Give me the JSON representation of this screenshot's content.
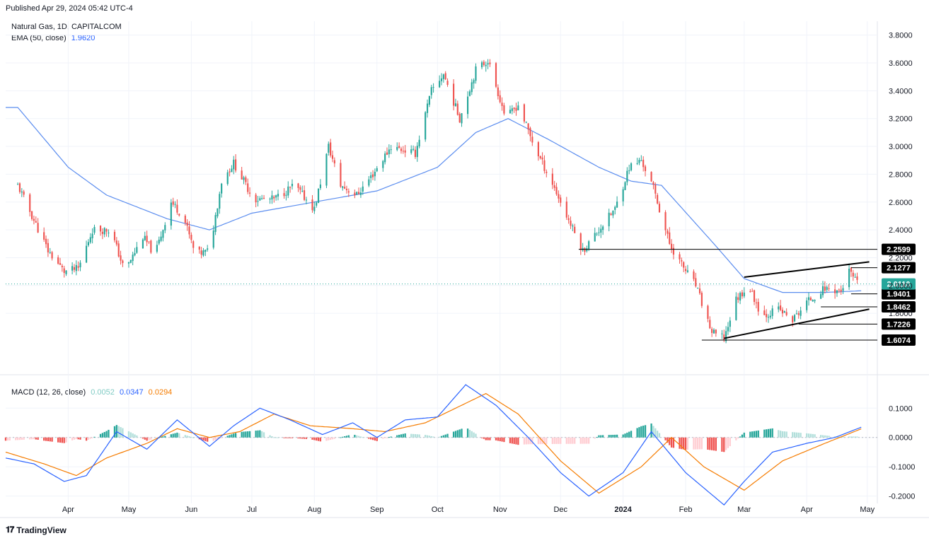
{
  "published": "Published Apr 29, 2024 05:42 UTC-4",
  "brand": "TradingView",
  "colors": {
    "up": "#26a69a",
    "down": "#ef5350",
    "ema": "#5b8def",
    "macd": "#2962ff",
    "signal": "#f57c00",
    "hist_pos_strong": "#26a69a",
    "hist_pos_weak": "#b2dfdb",
    "hist_neg_strong": "#ef5350",
    "hist_neg_weak": "#ffcdd2",
    "price_tag": "#000000",
    "last_tag": "#26a69a"
  },
  "main_legend": {
    "symbol": "Natural Gas, 1D, CAPITALCOM",
    "ema_label": "EMA (50, close)",
    "ema_value": "1.9620"
  },
  "macd_legend": {
    "label": "MACD (12, 26, close)",
    "hist": "0.0052",
    "macd": "0.0347",
    "signal": "0.0294"
  },
  "chart_data": [
    {
      "type": "candlestick",
      "title": "Natural Gas, 1D, CAPITALCOM",
      "ylim": [
        1.45,
        3.9
      ],
      "y_ticks": [
        "3.8000",
        "3.6000",
        "3.4000",
        "3.2000",
        "3.0000",
        "2.8000",
        "2.6000",
        "2.4000",
        "2.2000",
        "2.0000",
        "1.8000"
      ],
      "x_ticks": [
        "Apr",
        "May",
        "Jun",
        "Jul",
        "Aug",
        "Sep",
        "Oct",
        "Nov",
        "Dec",
        "2024",
        "Feb",
        "Mar",
        "Apr",
        "May"
      ],
      "x_tick_dates": [
        "2023-04-01",
        "2023-05-01",
        "2023-06-01",
        "2023-07-01",
        "2023-08-01",
        "2023-09-01",
        "2023-10-01",
        "2023-11-01",
        "2023-12-01",
        "2024-01-01",
        "2024-02-01",
        "2024-03-01",
        "2024-04-01",
        "2024-05-01"
      ],
      "series": [
        {
          "name": "Natural Gas",
          "anchors": [
            [
              "2023-03-07",
              2.72
            ],
            [
              "2023-03-22",
              2.25
            ],
            [
              "2023-03-30",
              2.1
            ],
            [
              "2023-04-06",
              2.12
            ],
            [
              "2023-04-13",
              2.4
            ],
            [
              "2023-04-22",
              2.4
            ],
            [
              "2023-04-29",
              2.1
            ],
            [
              "2023-05-08",
              2.35
            ],
            [
              "2023-05-14",
              2.22
            ],
            [
              "2023-05-22",
              2.6
            ],
            [
              "2023-05-28",
              2.5
            ],
            [
              "2023-06-03",
              2.22
            ],
            [
              "2023-06-10",
              2.25
            ],
            [
              "2023-06-16",
              2.75
            ],
            [
              "2023-06-22",
              2.88
            ],
            [
              "2023-07-02",
              2.62
            ],
            [
              "2023-07-12",
              2.62
            ],
            [
              "2023-07-22",
              2.72
            ],
            [
              "2023-08-01",
              2.55
            ],
            [
              "2023-08-08",
              3.0
            ],
            [
              "2023-08-14",
              2.72
            ],
            [
              "2023-08-22",
              2.65
            ],
            [
              "2023-08-30",
              2.8
            ],
            [
              "2023-09-08",
              3.0
            ],
            [
              "2023-09-20",
              2.95
            ],
            [
              "2023-09-28",
              3.4
            ],
            [
              "2023-10-04",
              3.52
            ],
            [
              "2023-10-12",
              3.2
            ],
            [
              "2023-10-20",
              3.55
            ],
            [
              "2023-10-26",
              3.62
            ],
            [
              "2023-11-04",
              3.2
            ],
            [
              "2023-11-10",
              3.3
            ],
            [
              "2023-11-18",
              3.0
            ],
            [
              "2023-11-28",
              2.7
            ],
            [
              "2023-12-04",
              2.5
            ],
            [
              "2023-12-12",
              2.25
            ],
            [
              "2023-12-20",
              2.4
            ],
            [
              "2023-12-28",
              2.55
            ],
            [
              "2024-01-04",
              2.85
            ],
            [
              "2024-01-10",
              2.9
            ],
            [
              "2024-01-16",
              2.7
            ],
            [
              "2024-01-24",
              2.3
            ],
            [
              "2024-01-30",
              2.15
            ],
            [
              "2024-02-06",
              2.0
            ],
            [
              "2024-02-14",
              1.66
            ],
            [
              "2024-02-20",
              1.62
            ],
            [
              "2024-02-26",
              1.9
            ],
            [
              "2024-03-03",
              2.0
            ],
            [
              "2024-03-10",
              1.78
            ],
            [
              "2024-03-18",
              1.83
            ],
            [
              "2024-03-25",
              1.75
            ],
            [
              "2024-04-01",
              1.88
            ],
            [
              "2024-04-10",
              1.98
            ],
            [
              "2024-04-18",
              1.96
            ],
            [
              "2024-04-22",
              2.1
            ],
            [
              "2024-04-26",
              2.011
            ]
          ]
        }
      ],
      "ema50_anchors": [
        [
          "2023-03-07",
          3.28
        ],
        [
          "2023-04-01",
          2.85
        ],
        [
          "2023-04-20",
          2.65
        ],
        [
          "2023-05-20",
          2.48
        ],
        [
          "2023-06-10",
          2.4
        ],
        [
          "2023-07-01",
          2.52
        ],
        [
          "2023-08-01",
          2.6
        ],
        [
          "2023-09-01",
          2.68
        ],
        [
          "2023-10-01",
          2.85
        ],
        [
          "2023-10-20",
          3.1
        ],
        [
          "2023-11-05",
          3.2
        ],
        [
          "2023-11-25",
          3.05
        ],
        [
          "2023-12-20",
          2.85
        ],
        [
          "2024-01-05",
          2.75
        ],
        [
          "2024-01-20",
          2.72
        ],
        [
          "2024-02-15",
          2.3
        ],
        [
          "2024-03-01",
          2.05
        ],
        [
          "2024-03-20",
          1.95
        ],
        [
          "2024-04-10",
          1.95
        ],
        [
          "2024-04-28",
          1.962
        ]
      ],
      "last_price": "2.0110",
      "levels": [
        {
          "value": 2.2599,
          "label": "2.2599",
          "from": "2023-12-10"
        },
        {
          "value": 2.1277,
          "label": "2.1277",
          "from": "2024-04-23"
        },
        {
          "value": 1.9401,
          "label": "1.9401",
          "from": "2024-04-23"
        },
        {
          "value": 1.8462,
          "label": "1.8462",
          "from": "2024-04-08"
        },
        {
          "value": 1.7226,
          "label": "1.7226",
          "from": "2024-03-28"
        },
        {
          "value": 1.6074,
          "label": "1.6074",
          "from": "2024-02-09"
        }
      ],
      "trendlines": [
        {
          "from": [
            "2024-02-20",
            1.62
          ],
          "to": [
            "2024-05-02",
            1.83
          ]
        },
        {
          "from": [
            "2024-03-01",
            2.06
          ],
          "to": [
            "2024-05-02",
            2.17
          ]
        }
      ]
    },
    {
      "type": "macd",
      "title": "MACD (12, 26, close)",
      "ylim": [
        -0.225,
        0.19
      ],
      "y_ticks": [
        "0.1000",
        "0.0000",
        "-0.1000",
        "-0.2000"
      ],
      "macd_anchors": [
        [
          "2023-03-01",
          -0.07
        ],
        [
          "2023-03-15",
          -0.09
        ],
        [
          "2023-03-30",
          -0.15
        ],
        [
          "2023-04-10",
          -0.13
        ],
        [
          "2023-04-25",
          0.02
        ],
        [
          "2023-05-10",
          -0.04
        ],
        [
          "2023-05-25",
          0.06
        ],
        [
          "2023-06-10",
          -0.03
        ],
        [
          "2023-06-22",
          0.04
        ],
        [
          "2023-07-05",
          0.1
        ],
        [
          "2023-07-20",
          0.06
        ],
        [
          "2023-08-05",
          0.01
        ],
        [
          "2023-08-20",
          0.05
        ],
        [
          "2023-09-01",
          0.0
        ],
        [
          "2023-09-15",
          0.06
        ],
        [
          "2023-10-01",
          0.07
        ],
        [
          "2023-10-15",
          0.18
        ],
        [
          "2023-10-30",
          0.11
        ],
        [
          "2023-11-15",
          0.0
        ],
        [
          "2023-12-01",
          -0.12
        ],
        [
          "2023-12-15",
          -0.2
        ],
        [
          "2024-01-01",
          -0.12
        ],
        [
          "2024-01-15",
          0.02
        ],
        [
          "2024-02-01",
          -0.12
        ],
        [
          "2024-02-20",
          -0.23
        ],
        [
          "2024-03-01",
          -0.15
        ],
        [
          "2024-03-15",
          -0.05
        ],
        [
          "2024-04-01",
          -0.02
        ],
        [
          "2024-04-15",
          0.0
        ],
        [
          "2024-04-28",
          0.035
        ]
      ],
      "signal_anchors": [
        [
          "2023-03-01",
          -0.05
        ],
        [
          "2023-03-20",
          -0.09
        ],
        [
          "2023-04-05",
          -0.13
        ],
        [
          "2023-04-20",
          -0.07
        ],
        [
          "2023-05-10",
          -0.02
        ],
        [
          "2023-05-25",
          0.03
        ],
        [
          "2023-06-10",
          0.0
        ],
        [
          "2023-06-25",
          0.02
        ],
        [
          "2023-07-12",
          0.08
        ],
        [
          "2023-07-30",
          0.04
        ],
        [
          "2023-08-20",
          0.03
        ],
        [
          "2023-09-05",
          0.02
        ],
        [
          "2023-09-25",
          0.05
        ],
        [
          "2023-10-10",
          0.1
        ],
        [
          "2023-10-25",
          0.15
        ],
        [
          "2023-11-10",
          0.08
        ],
        [
          "2023-12-01",
          -0.08
        ],
        [
          "2023-12-20",
          -0.19
        ],
        [
          "2024-01-10",
          -0.1
        ],
        [
          "2024-01-25",
          0.0
        ],
        [
          "2024-02-10",
          -0.1
        ],
        [
          "2024-03-01",
          -0.18
        ],
        [
          "2024-03-20",
          -0.08
        ],
        [
          "2024-04-10",
          -0.02
        ],
        [
          "2024-04-28",
          0.0294
        ]
      ]
    }
  ]
}
